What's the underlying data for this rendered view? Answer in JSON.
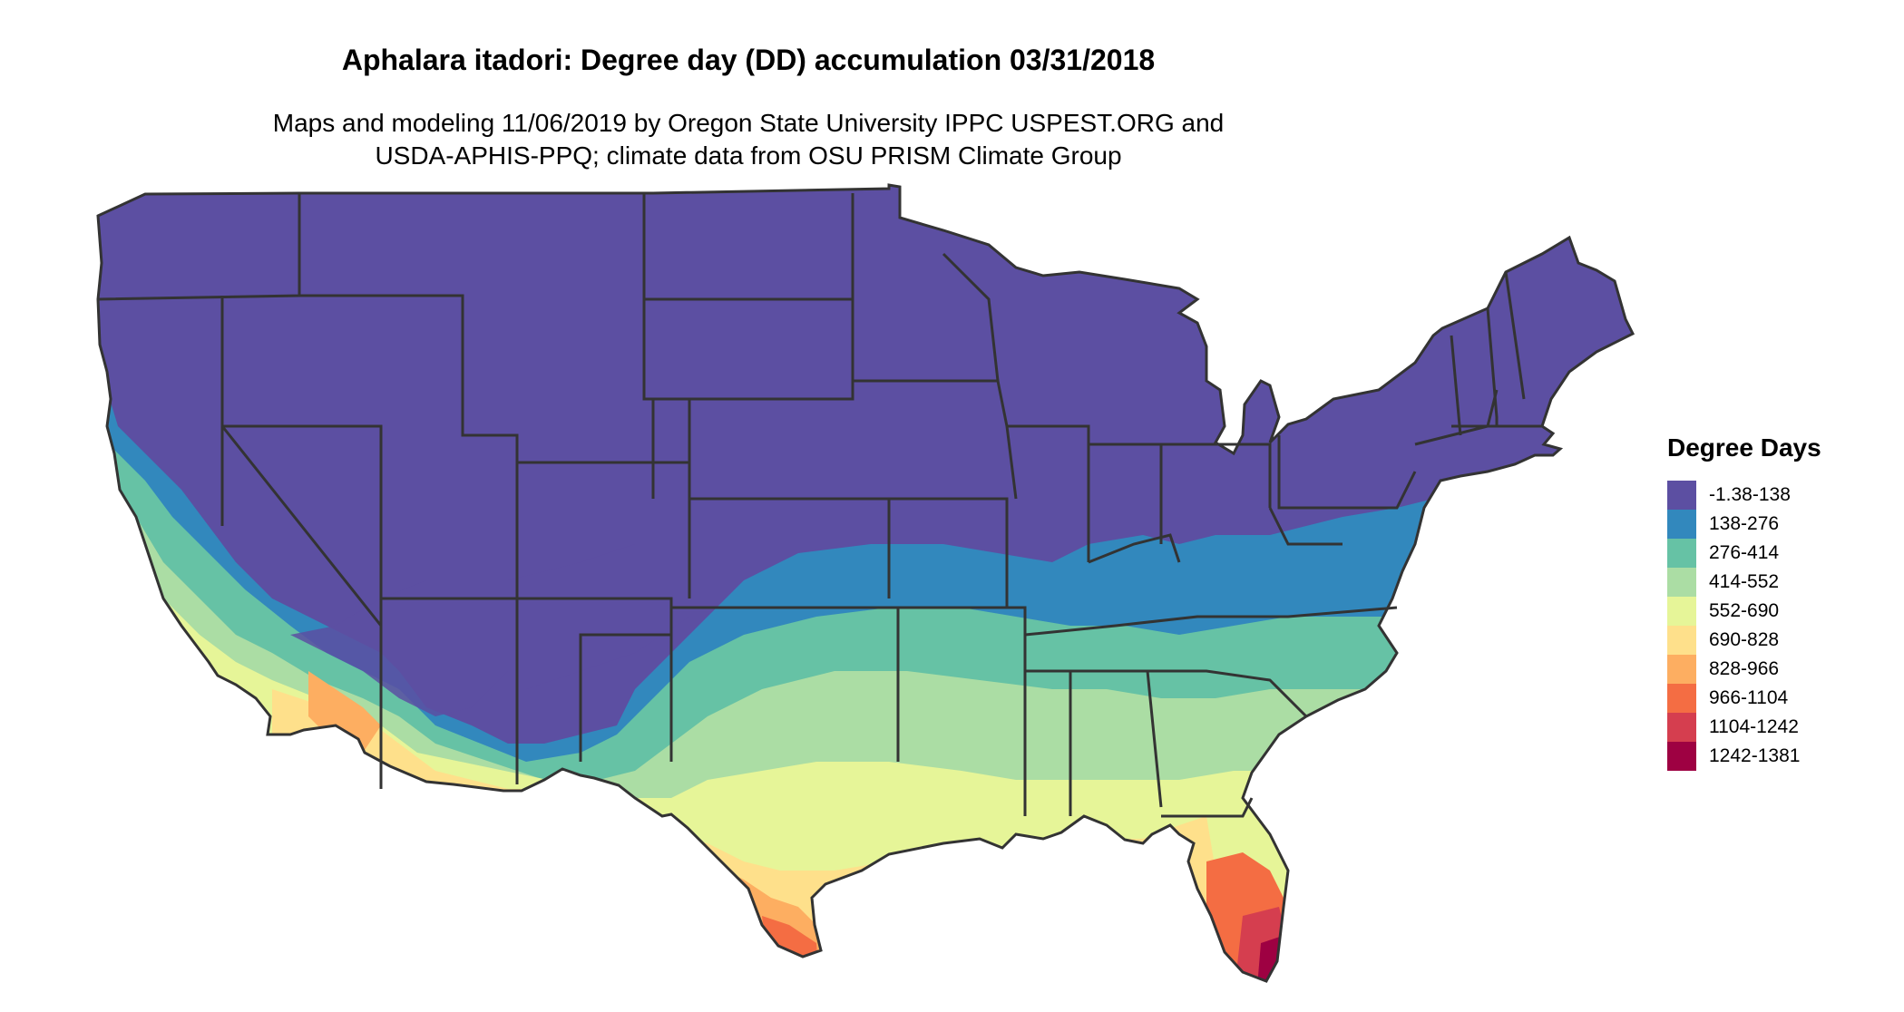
{
  "title": "Aphalara itadori: Degree day (DD) accumulation 03/31/2018",
  "subtitle_line1": "Maps and modeling 11/06/2019 by Oregon State University IPPC USPEST.ORG and",
  "subtitle_line2": "USDA-APHIS-PPQ; climate data from OSU PRISM Climate Group",
  "legend": {
    "title": "Degree Days",
    "items": [
      {
        "label": "-1.38-138",
        "color": "#5c4fa2"
      },
      {
        "label": "138-276",
        "color": "#3288bd"
      },
      {
        "label": "276-414",
        "color": "#66c2a5"
      },
      {
        "label": "414-552",
        "color": "#abdda4"
      },
      {
        "label": "552-690",
        "color": "#e6f598"
      },
      {
        "label": "690-828",
        "color": "#fee08b"
      },
      {
        "label": "828-966",
        "color": "#fdae61"
      },
      {
        "label": "966-1104",
        "color": "#f46d43"
      },
      {
        "label": "1104-1242",
        "color": "#d53e4f"
      },
      {
        "label": "1242-1381",
        "color": "#9e0142"
      }
    ]
  },
  "map": {
    "region": "contiguous-united-states",
    "boundary_color": "#333333",
    "colors": {
      "purple": "#5c4fa2",
      "blue": "#3288bd",
      "teal": "#66c2a5",
      "lightgreen": "#abdda4",
      "yellowgreen": "#e6f598",
      "yellow": "#fee08b",
      "orange": "#fdae61",
      "redorange": "#f46d43",
      "red": "#d53e4f",
      "darkred": "#9e0142"
    }
  }
}
